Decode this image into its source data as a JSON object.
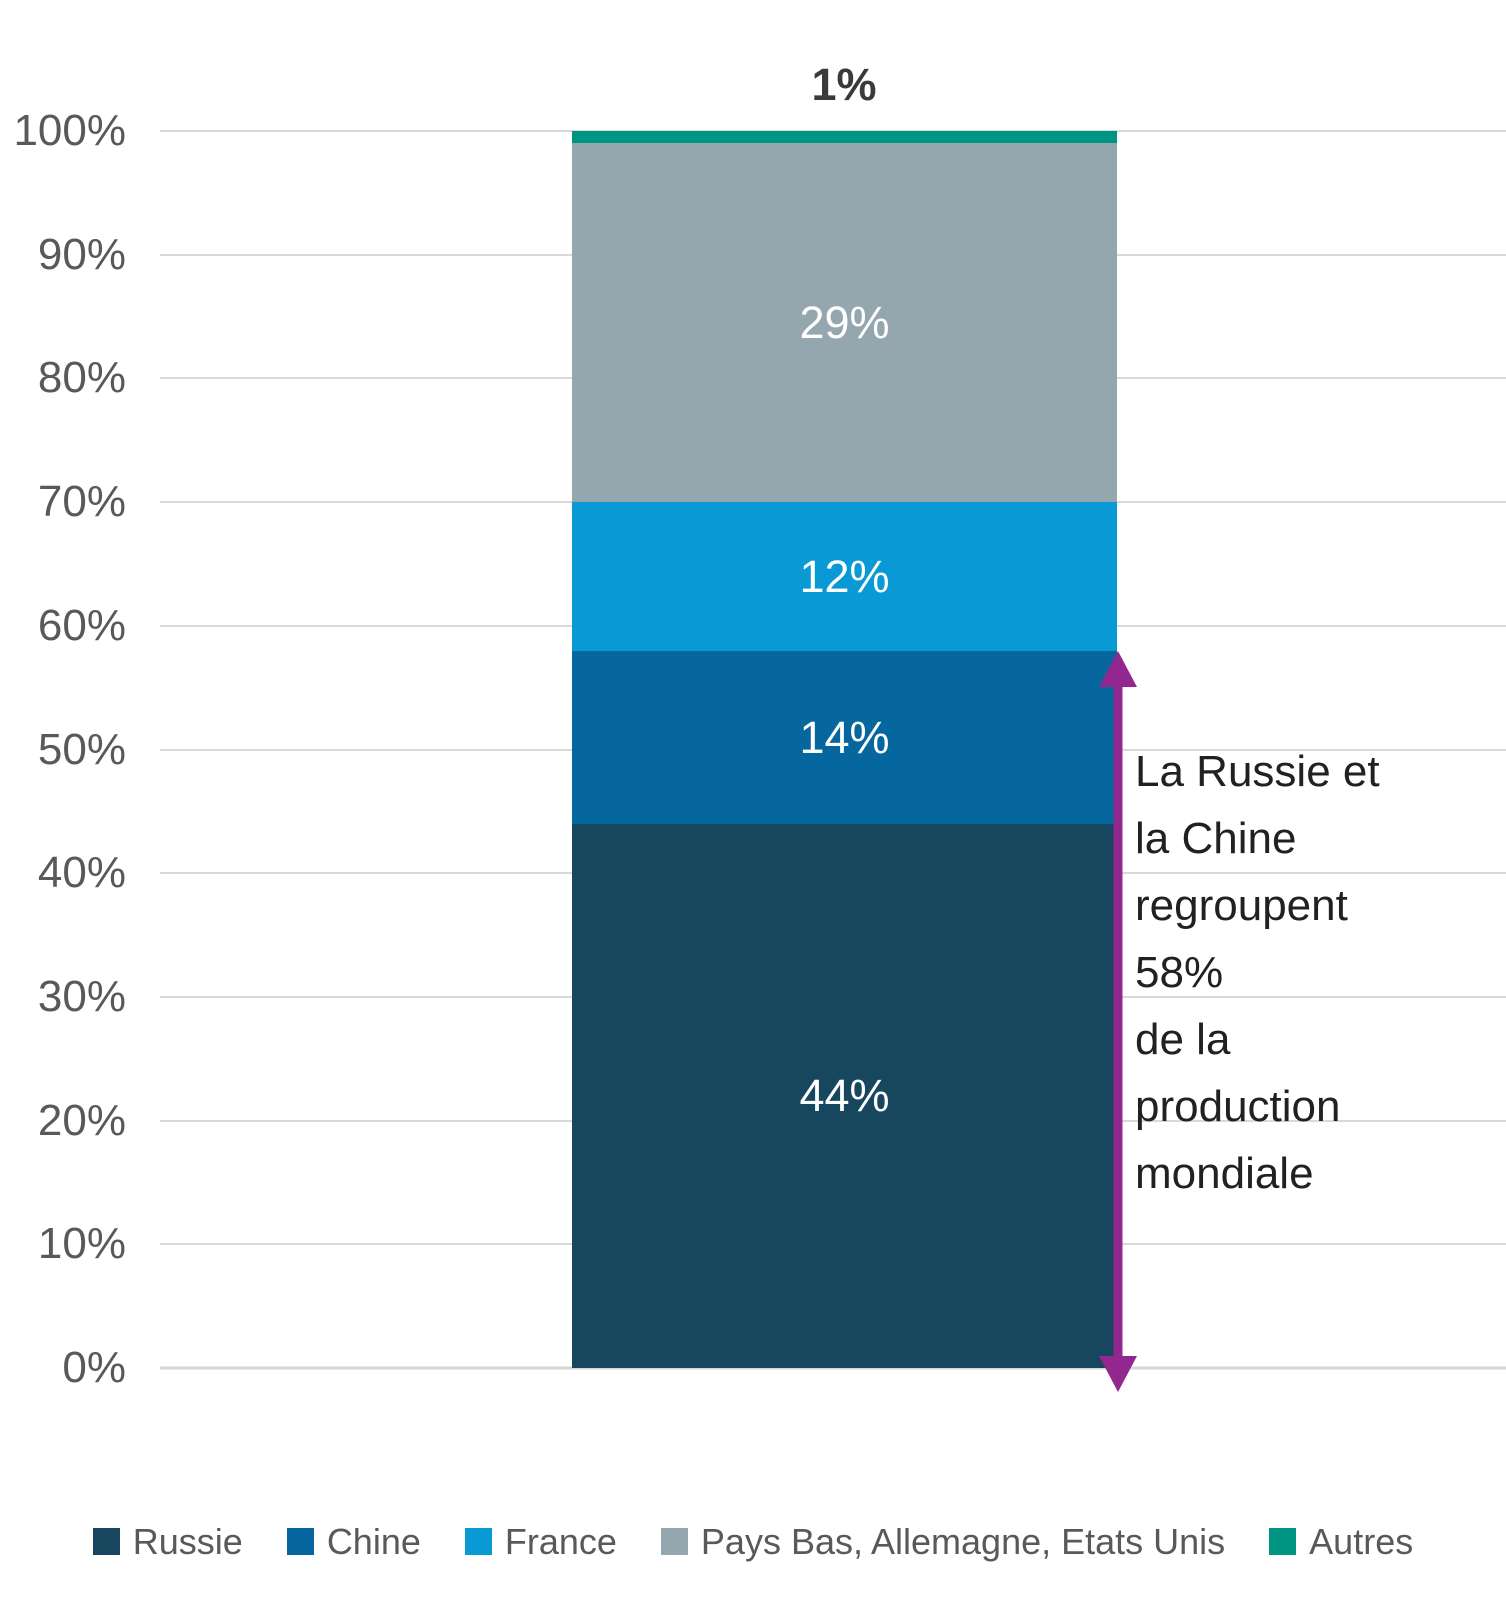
{
  "chart_data": {
    "type": "bar",
    "subtype": "stacked-percentage-single-column",
    "title": "",
    "xlabel": "",
    "ylabel": "",
    "grid": true,
    "legend_position": "bottom",
    "y_axis": {
      "min": 0,
      "max": 100,
      "step": 10,
      "tick_labels": [
        "0%",
        "10%",
        "20%",
        "30%",
        "40%",
        "50%",
        "60%",
        "70%",
        "80%",
        "90%",
        "100%"
      ]
    },
    "series": [
      {
        "name": "Russie",
        "value": 44,
        "label": "44%",
        "color": "#17465F",
        "label_position": "inside"
      },
      {
        "name": "Chine",
        "value": 14,
        "label": "14%",
        "color": "#06679E",
        "label_position": "inside"
      },
      {
        "name": "France",
        "value": 12,
        "label": "12%",
        "color": "#0999D5",
        "label_position": "inside"
      },
      {
        "name": "Pays Bas, Allemagne, Etats Unis",
        "value": 29,
        "label": "29%",
        "color": "#94A6AE",
        "label_position": "inside"
      },
      {
        "name": "Autres",
        "value": 1,
        "label": "1%",
        "color": "#009582",
        "label_position": "above"
      }
    ],
    "annotation": {
      "text": "La Russie et\nla Chine\nregroupent\n58%\nde la\nproduction\nmondiale",
      "arrow": {
        "from_percent": 0,
        "to_percent": 58,
        "color": "#92278F"
      }
    },
    "colors": {
      "gridline": "#D9D9D9",
      "axis_text": "#595959",
      "legend_text": "#595959",
      "value_label_inside": "#FFFFFF",
      "value_label_above": "#3A3A3A",
      "annotation_text": "#212121"
    }
  }
}
